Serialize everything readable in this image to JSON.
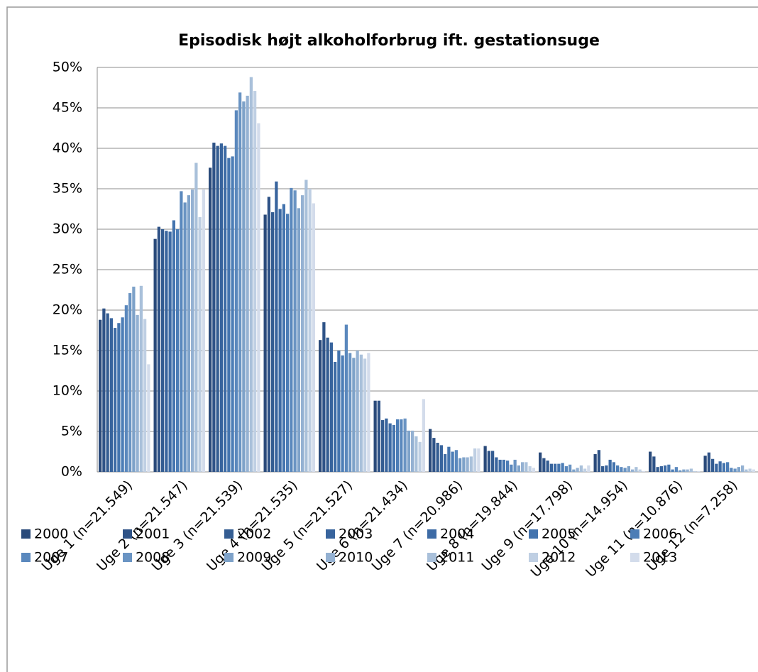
{
  "chart_data": {
    "type": "bar",
    "title": "Episodisk højt alkoholforbrug ift. gestationsuge",
    "categories": [
      "Uge 1 (n=21.549)",
      "Uge 2 (n=21.547)",
      "Uge 3 (n=21.539)",
      "Uge 4 (n=21.535)",
      "Uge 5 (n=21.527)",
      "Uge 6 (n=21.434)",
      "Uge 7 (n=20.986)",
      "Uge 8 (n=19.844)",
      "Uge 9 (n=17.798)",
      "Uge 10 (n=14.954)",
      "Uge 11 (n=10.876)",
      "Uge 12 (n=7.258)"
    ],
    "series": [
      {
        "name": "2000",
        "color": "#2a4a7a",
        "values": [
          18.8,
          28.8,
          37.6,
          31.8,
          16.3,
          8.8,
          5.3,
          3.2,
          2.4,
          2.2,
          2.5,
          2.0
        ]
      },
      {
        "name": "2001",
        "color": "#2f5387",
        "values": [
          20.2,
          30.3,
          40.7,
          34.0,
          18.5,
          8.8,
          4.2,
          2.6,
          1.7,
          2.7,
          1.9,
          2.4
        ]
      },
      {
        "name": "2002",
        "color": "#345d92",
        "values": [
          19.6,
          30.0,
          40.3,
          32.1,
          16.6,
          6.4,
          3.6,
          2.6,
          1.4,
          0.7,
          0.6,
          1.6
        ]
      },
      {
        "name": "2003",
        "color": "#38649d",
        "values": [
          19.0,
          29.8,
          40.6,
          35.9,
          16.0,
          6.6,
          3.3,
          1.8,
          1.0,
          0.8,
          0.7,
          1.0
        ]
      },
      {
        "name": "2004",
        "color": "#3d6ba5",
        "values": [
          17.8,
          29.7,
          40.3,
          32.5,
          13.6,
          6.0,
          2.2,
          1.5,
          1.0,
          1.5,
          0.8,
          1.3
        ]
      },
      {
        "name": "2005",
        "color": "#4474ae",
        "values": [
          18.4,
          31.1,
          38.8,
          33.1,
          15.0,
          5.8,
          3.1,
          1.5,
          1.0,
          1.2,
          0.9,
          1.1
        ]
      },
      {
        "name": "2006",
        "color": "#4c7db6",
        "values": [
          19.1,
          30.0,
          39.0,
          31.9,
          14.4,
          6.5,
          2.5,
          1.4,
          1.1,
          0.8,
          0.3,
          1.2
        ]
      },
      {
        "name": "2007",
        "color": "#5a88bd",
        "values": [
          20.6,
          34.7,
          44.7,
          35.1,
          18.2,
          6.5,
          2.7,
          0.9,
          0.7,
          0.6,
          0.6,
          0.5
        ]
      },
      {
        "name": "2008",
        "color": "#6a94c3",
        "values": [
          22.1,
          33.3,
          46.9,
          34.8,
          14.7,
          6.6,
          1.7,
          1.5,
          0.9,
          0.5,
          0.2,
          0.4
        ]
      },
      {
        "name": "2009",
        "color": "#7ea2c9",
        "values": [
          22.9,
          34.2,
          45.8,
          32.6,
          14.1,
          5.1,
          1.8,
          0.8,
          0.3,
          0.7,
          0.3,
          0.6
        ]
      },
      {
        "name": "2010",
        "color": "#94b1d2",
        "values": [
          19.4,
          34.9,
          46.5,
          34.2,
          15.0,
          5.1,
          1.8,
          1.2,
          0.5,
          0.3,
          0.3,
          0.8
        ]
      },
      {
        "name": "2011",
        "color": "#a9c0da",
        "values": [
          23.0,
          38.2,
          48.8,
          36.1,
          14.5,
          4.4,
          1.9,
          1.2,
          0.8,
          0.6,
          0.4,
          0.3
        ]
      },
      {
        "name": "2012",
        "color": "#bfcfe3",
        "values": [
          18.9,
          31.5,
          47.1,
          35.0,
          14.0,
          3.7,
          2.9,
          0.7,
          0.4,
          0.3,
          0.1,
          0.4
        ]
      },
      {
        "name": "2013",
        "color": "#d3dceb",
        "values": [
          13.3,
          34.9,
          43.1,
          33.2,
          14.7,
          9.0,
          2.9,
          0.5,
          0.8,
          0.1,
          0.1,
          0.3
        ]
      }
    ],
    "ylim": [
      0,
      50
    ],
    "yticks": [
      {
        "value": 0,
        "label": "0%"
      },
      {
        "value": 5,
        "label": "5%"
      },
      {
        "value": 10,
        "label": "10%"
      },
      {
        "value": 15,
        "label": "15%"
      },
      {
        "value": 20,
        "label": "20%"
      },
      {
        "value": 25,
        "label": "25%"
      },
      {
        "value": 30,
        "label": "30%"
      },
      {
        "value": 35,
        "label": "35%"
      },
      {
        "value": 40,
        "label": "40%"
      },
      {
        "value": 45,
        "label": "45%"
      },
      {
        "value": 50,
        "label": "50%"
      }
    ],
    "grid": true,
    "legend": "bottom"
  }
}
